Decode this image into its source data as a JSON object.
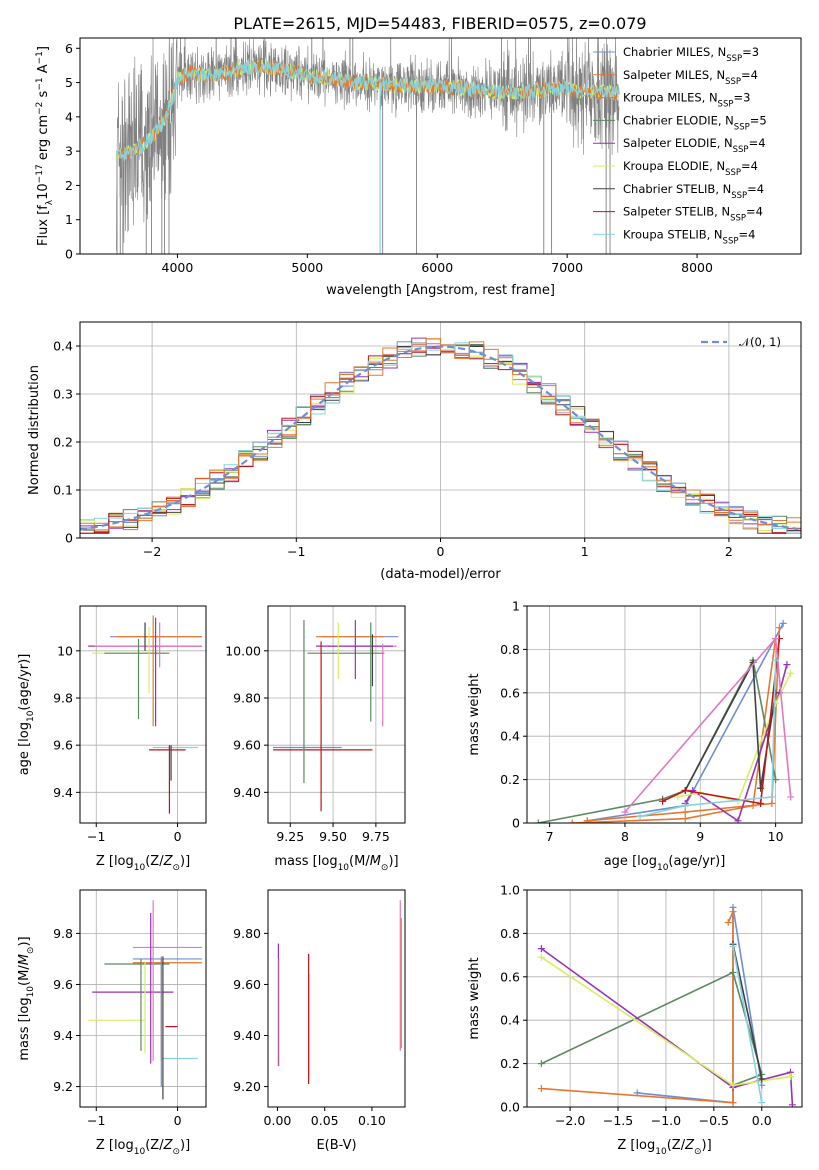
{
  "figure_title": "PLATE=2615, MJD=54483, FIBERID=0575, z=0.079",
  "colors": {
    "c0": "#6d8fd6",
    "c1": "#e8772e",
    "c2": "#5a8a5f",
    "c3": "#9b30b5",
    "c4": "#d6ef5e",
    "c5": "#404040",
    "c6": "#c0151b",
    "c7": "#86d3df",
    "c8": "#e377c2",
    "gray": "#808080",
    "grid": "#b0b0b0"
  },
  "chart_data": [
    {
      "id": "spectrum",
      "type": "line",
      "title": "PLATE=2615, MJD=54483, FIBERID=0575, z=0.079",
      "xlabel": "wavelength [Angstrom, rest frame]",
      "ylabel": "Flux [f_λ 10^-17 erg cm^-2 s^-1 A^-1]",
      "xlim": [
        3250,
        8800
      ],
      "ylim": [
        0,
        6.3
      ],
      "xticks": [
        4000,
        5000,
        6000,
        7000,
        8000
      ],
      "yticks": [
        0,
        1,
        2,
        3,
        4,
        5,
        6
      ],
      "grid": false,
      "legend_position": "upper right",
      "data_range": [
        3530,
        7400
      ],
      "continuum": {
        "x": [
          3530,
          3600,
          3700,
          3800,
          3900,
          3950,
          4000,
          4100,
          4200,
          4300,
          4400,
          4500,
          4600,
          4700,
          4800,
          4900,
          5000,
          5200,
          5400,
          5600,
          5800,
          6000,
          6200,
          6400,
          6600,
          6800,
          7000,
          7200,
          7400
        ],
        "y": [
          3.0,
          2.9,
          3.1,
          3.4,
          3.9,
          4.4,
          5.1,
          5.3,
          5.2,
          5.2,
          5.3,
          5.4,
          5.45,
          5.45,
          5.4,
          5.3,
          5.2,
          5.1,
          5.0,
          4.95,
          4.9,
          4.9,
          4.85,
          4.75,
          4.7,
          4.8,
          4.8,
          4.75,
          4.7
        ]
      },
      "legend": [
        {
          "label": "Chabrier MILES, N",
          "sub": "SSP",
          "tail": "=3",
          "color_key": "c0"
        },
        {
          "label": "Salpeter MILES, N",
          "sub": "SSP",
          "tail": "=4",
          "color_key": "c1"
        },
        {
          "label": "Kroupa MILES, N",
          "sub": "SSP",
          "tail": "=3",
          "color_key": "c1"
        },
        {
          "label": "Chabrier ELODIE, N",
          "sub": "SSP",
          "tail": "=5",
          "color_key": "c2"
        },
        {
          "label": "Salpeter ELODIE, N",
          "sub": "SSP",
          "tail": "=4",
          "color_key": "c3"
        },
        {
          "label": "Kroupa ELODIE, N",
          "sub": "SSP",
          "tail": "=4",
          "color_key": "c4"
        },
        {
          "label": "Chabrier STELIB, N",
          "sub": "SSP",
          "tail": "=4",
          "color_key": "c5"
        },
        {
          "label": "Salpeter STELIB, N",
          "sub": "SSP",
          "tail": "=4",
          "color_key": "c6"
        },
        {
          "label": "Kroupa STELIB, N",
          "sub": "SSP",
          "tail": "=4",
          "color_key": "c7"
        }
      ]
    },
    {
      "id": "residuals",
      "type": "histogram",
      "xlabel": "(data-model)/error",
      "ylabel": "Normed distribution",
      "xlim": [
        -2.5,
        2.5
      ],
      "ylim": [
        0,
        0.45
      ],
      "xticks": [
        -2,
        -1,
        0,
        1,
        2
      ],
      "yticks": [
        0.0,
        0.1,
        0.2,
        0.3,
        0.4
      ],
      "grid": true,
      "legend": "𝒩(0, 1)",
      "legend_position": "upper right",
      "bin_width": 0.1,
      "series_color_keys": [
        "c0",
        "c1",
        "c2",
        "c3",
        "c4",
        "c5",
        "c6",
        "c7",
        "c1"
      ]
    },
    {
      "id": "age_vs_Z",
      "type": "errorbar",
      "xlabel": "Z [log10(Z/Z☉)]",
      "ylabel": "age [log10(age/yr)]",
      "xlim": [
        -1.2,
        0.35
      ],
      "ylim": [
        9.27,
        10.19
      ],
      "xticks": [
        -1,
        0
      ],
      "yticks": [
        9.4,
        9.6,
        9.8,
        10.0
      ],
      "grid": true,
      "points": [
        {
          "x": -0.28,
          "y": 10.06,
          "xlo": 0.55,
          "xhi": 0.58,
          "ylo": 0.0,
          "yhi": 0.0,
          "c": "c0"
        },
        {
          "x": -0.22,
          "y": 10.06,
          "xlo": 0.55,
          "xhi": 0.52,
          "ylo": 0.0,
          "yhi": 0.0,
          "c": "c1"
        },
        {
          "x": -0.35,
          "y": 10.02,
          "xlo": 0.75,
          "xhi": 0.65,
          "ylo": 0.0,
          "yhi": 0.0,
          "c": "c3"
        },
        {
          "x": -0.3,
          "y": 10.02,
          "xlo": 0.72,
          "xhi": 0.6,
          "ylo": 0.0,
          "yhi": 0.0,
          "c": "c8"
        },
        {
          "x": -0.5,
          "y": 9.99,
          "xlo": 0.55,
          "xhi": 0.35,
          "ylo": 0.0,
          "yhi": 0.0,
          "c": "c4"
        },
        {
          "x": -0.45,
          "y": 9.99,
          "xlo": 0.45,
          "xhi": 0.35,
          "ylo": 0.0,
          "yhi": 0.0,
          "c": "c2"
        },
        {
          "x": -0.1,
          "y": 9.58,
          "xlo": 0.25,
          "xhi": 0.2,
          "ylo": 0.0,
          "yhi": 0.0,
          "c": "c6"
        },
        {
          "x": -0.05,
          "y": 9.59,
          "xlo": 0.25,
          "xhi": 0.3,
          "ylo": 0.0,
          "yhi": 0.0,
          "c": "c7"
        },
        {
          "x": -0.48,
          "y": 9.95,
          "xlo": 0.0,
          "xhi": 0.0,
          "ylo": 0.24,
          "yhi": 0.1,
          "c": "c2"
        },
        {
          "x": -0.4,
          "y": 10.0,
          "xlo": 0.0,
          "xhi": 0.0,
          "ylo": 0.0,
          "yhi": 0.12,
          "c": "c5"
        },
        {
          "x": -0.35,
          "y": 9.95,
          "xlo": 0.0,
          "xhi": 0.0,
          "ylo": 0.13,
          "yhi": 0.15,
          "c": "c4"
        },
        {
          "x": -0.3,
          "y": 10.0,
          "xlo": 0.0,
          "xhi": 0.0,
          "ylo": 0.32,
          "yhi": 0.15,
          "c": "c1"
        },
        {
          "x": -0.27,
          "y": 10.0,
          "xlo": 0.0,
          "xhi": 0.0,
          "ylo": 0.32,
          "yhi": 0.14,
          "c": "c3"
        },
        {
          "x": -0.22,
          "y": 10.0,
          "xlo": 0.0,
          "xhi": 0.0,
          "ylo": 0.07,
          "yhi": 0.12,
          "c": "c8"
        },
        {
          "x": -0.1,
          "y": 9.6,
          "xlo": 0.0,
          "xhi": 0.0,
          "ylo": 0.29,
          "yhi": 0.0,
          "c": "c6"
        },
        {
          "x": -0.08,
          "y": 9.6,
          "xlo": 0.0,
          "xhi": 0.0,
          "ylo": 0.15,
          "yhi": 0.0,
          "c": "c5"
        }
      ]
    },
    {
      "id": "age_vs_mass",
      "type": "errorbar",
      "xlabel": "mass [log10(M/M☉)]",
      "ylabel": "",
      "xlim": [
        9.12,
        9.92
      ],
      "ylim": [
        9.27,
        10.19
      ],
      "xticks": [
        9.25,
        9.5,
        9.75
      ],
      "yticks": [
        9.4,
        9.6,
        9.8,
        10.0
      ],
      "grid": true,
      "points": [
        {
          "x": 9.68,
          "y": 10.06,
          "xlo": 0.25,
          "xhi": 0.2,
          "ylo": 0.0,
          "yhi": 0.0,
          "c": "c0"
        },
        {
          "x": 9.6,
          "y": 10.06,
          "xlo": 0.2,
          "xhi": 0.2,
          "ylo": 0.0,
          "yhi": 0.0,
          "c": "c1"
        },
        {
          "x": 9.72,
          "y": 10.02,
          "xlo": 0.25,
          "xhi": 0.15,
          "ylo": 0.0,
          "yhi": 0.0,
          "c": "c8"
        },
        {
          "x": 9.65,
          "y": 10.02,
          "xlo": 0.25,
          "xhi": 0.2,
          "ylo": 0.0,
          "yhi": 0.0,
          "c": "c3"
        },
        {
          "x": 9.6,
          "y": 9.99,
          "xlo": 0.25,
          "xhi": 0.2,
          "ylo": 0.0,
          "yhi": 0.0,
          "c": "c2"
        },
        {
          "x": 9.45,
          "y": 9.58,
          "xlo": 0.3,
          "xhi": 0.28,
          "ylo": 0.0,
          "yhi": 0.0,
          "c": "c6"
        },
        {
          "x": 9.35,
          "y": 9.59,
          "xlo": 0.2,
          "xhi": 0.2,
          "ylo": 0.0,
          "yhi": 0.0,
          "c": "c0"
        },
        {
          "x": 9.33,
          "y": 10.0,
          "xlo": 0.0,
          "xhi": 0.0,
          "ylo": 0.56,
          "yhi": 0.13,
          "c": "c2"
        },
        {
          "x": 9.43,
          "y": 9.9,
          "xlo": 0.0,
          "xhi": 0.0,
          "ylo": 0.58,
          "yhi": 0.14,
          "c": "c6"
        },
        {
          "x": 9.53,
          "y": 10.0,
          "xlo": 0.0,
          "xhi": 0.0,
          "ylo": 0.12,
          "yhi": 0.12,
          "c": "c4"
        },
        {
          "x": 9.63,
          "y": 10.0,
          "xlo": 0.0,
          "xhi": 0.0,
          "ylo": 0.12,
          "yhi": 0.13,
          "c": "c3"
        },
        {
          "x": 9.72,
          "y": 10.0,
          "xlo": 0.0,
          "xhi": 0.0,
          "ylo": 0.3,
          "yhi": 0.12,
          "c": "c2"
        },
        {
          "x": 9.73,
          "y": 10.0,
          "xlo": 0.0,
          "xhi": 0.0,
          "ylo": 0.15,
          "yhi": 0.07,
          "c": "c5"
        },
        {
          "x": 9.79,
          "y": 10.0,
          "xlo": 0.0,
          "xhi": 0.0,
          "ylo": 0.32,
          "yhi": 0.03,
          "c": "c8"
        }
      ]
    },
    {
      "id": "mass_weight_vs_age",
      "type": "line",
      "xlabel": "age [log10(age/yr)]",
      "ylabel": "mass weight",
      "xlim": [
        6.7,
        10.35
      ],
      "ylim": [
        0,
        1
      ],
      "xticks": [
        7,
        8,
        9,
        10
      ],
      "yticks": [
        0.0,
        0.2,
        0.4,
        0.6,
        0.8,
        1.0
      ],
      "grid": true,
      "series": [
        {
          "c": "c0",
          "x": [
            7.5,
            8.8,
            10.1
          ],
          "y": [
            0.01,
            0.08,
            0.92
          ]
        },
        {
          "c": "c1",
          "x": [
            7.5,
            8.8,
            9.95,
            10.05
          ],
          "y": [
            0.01,
            0.05,
            0.09,
            0.9
          ]
        },
        {
          "c": "c1",
          "x": [
            7.3,
            8.8,
            9.7,
            10.0
          ],
          "y": [
            0.0,
            0.02,
            0.08,
            0.85
          ]
        },
        {
          "c": "c2",
          "x": [
            6.85,
            8.5,
            8.8,
            9.7,
            10.0
          ],
          "y": [
            0.0,
            0.11,
            0.15,
            0.75,
            0.2
          ]
        },
        {
          "c": "c3",
          "x": [
            8.8,
            8.9,
            9.5,
            10.05,
            10.15
          ],
          "y": [
            0.09,
            0.15,
            0.01,
            0.6,
            0.73
          ]
        },
        {
          "c": "c4",
          "x": [
            8.7,
            9.0,
            9.5,
            10.0,
            10.2
          ],
          "y": [
            0.12,
            0.14,
            0.1,
            0.55,
            0.69
          ]
        },
        {
          "c": "c5",
          "x": [
            8.8,
            9.7,
            9.8,
            10.0
          ],
          "y": [
            0.15,
            0.74,
            0.16,
            0.6
          ]
        },
        {
          "c": "c6",
          "x": [
            8.5,
            8.8,
            9.8,
            10.05
          ],
          "y": [
            0.1,
            0.15,
            0.09,
            0.85
          ]
        },
        {
          "c": "c8",
          "x": [
            8.0,
            10.0,
            10.2
          ],
          "y": [
            0.05,
            0.85,
            0.12
          ]
        },
        {
          "c": "c7",
          "x": [
            8.2,
            8.8,
            9.95,
            10.0
          ],
          "y": [
            0.03,
            0.08,
            0.12,
            0.75
          ]
        }
      ]
    },
    {
      "id": "mass_vs_Z",
      "type": "errorbar",
      "xlabel": "Z [log10(Z/Z☉)]",
      "ylabel": "mass [log10(M/M☉)]",
      "xlim": [
        -1.2,
        0.35
      ],
      "ylim": [
        9.12,
        9.97
      ],
      "xticks": [
        -1,
        0
      ],
      "yticks": [
        9.2,
        9.4,
        9.6,
        9.8
      ],
      "grid": true,
      "points": [
        {
          "x": -0.1,
          "y": 9.745,
          "xlo": 0.45,
          "xhi": 0.4,
          "ylo": 0.0,
          "yhi": 0.0,
          "c": "c8"
        },
        {
          "x": -0.15,
          "y": 9.7,
          "xlo": 0.4,
          "xhi": 0.45,
          "ylo": 0.0,
          "yhi": 0.0,
          "c": "c0"
        },
        {
          "x": -0.2,
          "y": 9.685,
          "xlo": 0.35,
          "xhi": 0.5,
          "ylo": 0.0,
          "yhi": 0.0,
          "c": "c1"
        },
        {
          "x": -0.45,
          "y": 9.68,
          "xlo": 0.45,
          "xhi": 0.35,
          "ylo": 0.0,
          "yhi": 0.0,
          "c": "c2"
        },
        {
          "x": -0.55,
          "y": 9.57,
          "xlo": 0.5,
          "xhi": 0.5,
          "ylo": 0.0,
          "yhi": 0.0,
          "c": "c3"
        },
        {
          "x": -0.7,
          "y": 9.46,
          "xlo": 0.4,
          "xhi": 0.3,
          "ylo": 0.0,
          "yhi": 0.0,
          "c": "c4"
        },
        {
          "x": -0.1,
          "y": 9.435,
          "xlo": 0.05,
          "xhi": 0.1,
          "ylo": 0.0,
          "yhi": 0.0,
          "c": "c6"
        },
        {
          "x": 0.05,
          "y": 9.31,
          "xlo": 0.25,
          "xhi": 0.2,
          "ylo": 0.0,
          "yhi": 0.0,
          "c": "c7"
        },
        {
          "x": -0.45,
          "y": 9.5,
          "xlo": 0.0,
          "xhi": 0.0,
          "ylo": 0.16,
          "yhi": 0.2,
          "c": "c2"
        },
        {
          "x": -0.4,
          "y": 9.5,
          "xlo": 0.0,
          "xhi": 0.0,
          "ylo": 0.17,
          "yhi": 0.19,
          "c": "c4"
        },
        {
          "x": -0.3,
          "y": 9.6,
          "xlo": 0.0,
          "xhi": 0.0,
          "ylo": 0.3,
          "yhi": 0.33,
          "c": "c8"
        },
        {
          "x": -0.33,
          "y": 9.6,
          "xlo": 0.0,
          "xhi": 0.0,
          "ylo": 0.31,
          "yhi": 0.28,
          "c": "c3"
        },
        {
          "x": -0.2,
          "y": 9.55,
          "xlo": 0.0,
          "xhi": 0.0,
          "ylo": 0.25,
          "yhi": 0.16,
          "c": "c1"
        },
        {
          "x": -0.18,
          "y": 9.45,
          "xlo": 0.0,
          "xhi": 0.0,
          "ylo": 0.3,
          "yhi": 0.26,
          "c": "c5"
        },
        {
          "x": -0.2,
          "y": 9.4,
          "xlo": 0.0,
          "xhi": 0.0,
          "ylo": 0.2,
          "yhi": 0.3,
          "c": "c0"
        }
      ]
    },
    {
      "id": "mass_vs_ebv",
      "type": "errorbar",
      "xlabel": "E(B-V)",
      "ylabel": "",
      "xlim": [
        -0.01,
        0.135
      ],
      "ylim": [
        9.12,
        9.97
      ],
      "xticks": [
        0.0,
        0.05,
        0.1
      ],
      "yticks": [
        9.2,
        9.4,
        9.6,
        9.8
      ],
      "grid": false,
      "points": [
        {
          "x": 0.001,
          "y": 9.55,
          "xlo": 0.0,
          "xhi": 0.0,
          "ylo": 0.27,
          "yhi": 0.21,
          "c": "c3"
        },
        {
          "x": 0.002,
          "y": 9.5,
          "xlo": 0.0,
          "xhi": 0.0,
          "ylo": 0.22,
          "yhi": 0.2,
          "c": "c4"
        },
        {
          "x": 0.033,
          "y": 9.5,
          "xlo": 0.0,
          "xhi": 0.0,
          "ylo": 0.29,
          "yhi": 0.22,
          "c": "c6"
        },
        {
          "x": 0.034,
          "y": 9.45,
          "xlo": 0.0,
          "xhi": 0.0,
          "ylo": 0.21,
          "yhi": 0.19,
          "c": "c7"
        },
        {
          "x": 0.13,
          "y": 9.6,
          "xlo": 0.0,
          "xhi": 0.0,
          "ylo": 0.26,
          "yhi": 0.33,
          "c": "c8"
        },
        {
          "x": 0.131,
          "y": 9.6,
          "xlo": 0.0,
          "xhi": 0.0,
          "ylo": 0.25,
          "yhi": 0.26,
          "c": "c1"
        }
      ]
    },
    {
      "id": "mass_weight_vs_Z",
      "type": "line",
      "xlabel": "Z [log10(Z/Z☉)]",
      "ylabel": "mass weight",
      "xlim": [
        -2.45,
        0.42
      ],
      "ylim": [
        0,
        1
      ],
      "xticks": [
        -2.0,
        -1.5,
        -1.0,
        -0.5,
        0.0
      ],
      "yticks": [
        0.0,
        0.2,
        0.4,
        0.6,
        0.8,
        1.0
      ],
      "grid": true,
      "series": [
        {
          "c": "c0",
          "x": [
            -1.3,
            -0.3,
            -0.3,
            0.0
          ],
          "y": [
            0.065,
            0.02,
            0.92,
            0.1
          ]
        },
        {
          "c": "c1",
          "x": [
            -2.3,
            -0.3,
            -0.3,
            -0.35
          ],
          "y": [
            0.085,
            0.02,
            0.9,
            0.85
          ]
        },
        {
          "c": "c2",
          "x": [
            -2.3,
            -0.3,
            0.0,
            -0.3
          ],
          "y": [
            0.2,
            0.62,
            0.15,
            0.1
          ]
        },
        {
          "c": "c3",
          "x": [
            -2.3,
            -0.3,
            0.3,
            0.32
          ],
          "y": [
            0.73,
            0.09,
            0.16,
            0.01
          ]
        },
        {
          "c": "c4",
          "x": [
            -2.3,
            -0.3,
            0.3
          ],
          "y": [
            0.69,
            0.1,
            0.14
          ]
        },
        {
          "c": "c5",
          "x": [
            -0.3,
            0.0
          ],
          "y": [
            0.75,
            0.13
          ]
        },
        {
          "c": "c7",
          "x": [
            -0.3,
            0.0
          ],
          "y": [
            0.74,
            0.02
          ]
        }
      ]
    }
  ]
}
